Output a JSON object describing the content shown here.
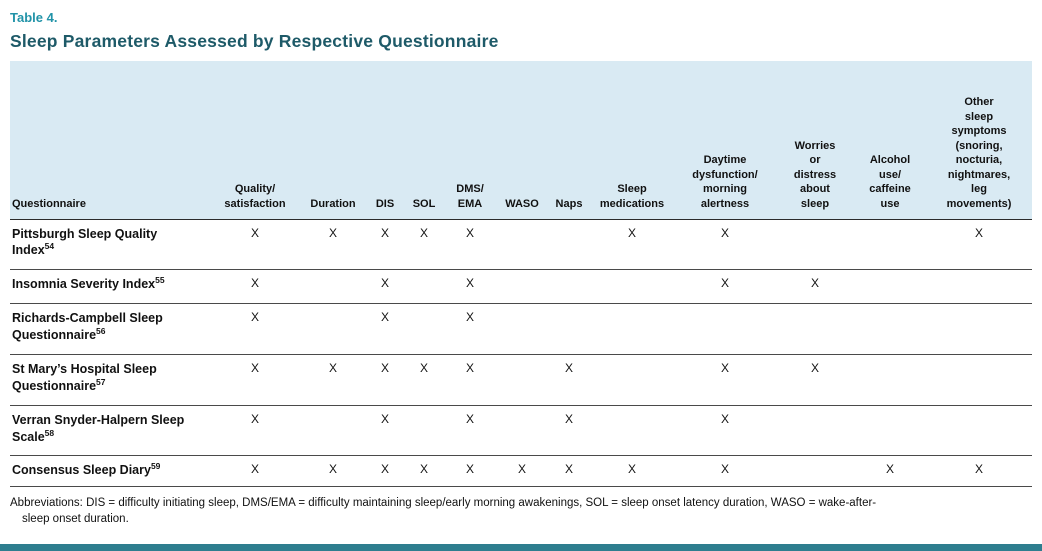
{
  "colors": {
    "accent_teal": "#2193A8",
    "title_teal": "#1E5A68",
    "header_bg": "#D9EAF3",
    "bottom_bar": "#2E7E8F",
    "rule_color": "#4a4a4a"
  },
  "table_label": "Table 4.",
  "title": "Sleep Parameters Assessed by Respective Questionnaire",
  "table": {
    "columns": [
      "Questionnaire",
      "Quality/\nsatisfaction",
      "Duration",
      "DIS",
      "SOL",
      "DMS/\nEMA",
      "WASO",
      "Naps",
      "Sleep\nmedications",
      "Daytime\ndysfunction/\nmorning\nalertness",
      "Worries\nor\ndistress\nabout\nsleep",
      "Alcohol\nuse/\ncaffeine\nuse",
      "Other\nsleep\nsymptoms\n(snoring,\nnocturia,\nnightmares,\nleg\nmovements)"
    ],
    "mark_symbol": "X",
    "rows": [
      {
        "name": "Pittsburgh Sleep Quality Index",
        "ref": "54",
        "marks": [
          "X",
          "X",
          "X",
          "X",
          "X",
          "",
          "",
          "X",
          "X",
          "",
          "",
          "X"
        ]
      },
      {
        "name": "Insomnia Severity Index",
        "ref": "55",
        "marks": [
          "X",
          "",
          "X",
          "",
          "X",
          "",
          "",
          "",
          "X",
          "X",
          "",
          ""
        ]
      },
      {
        "name": "Richards-Campbell Sleep Questionnaire",
        "ref": "56",
        "marks": [
          "X",
          "",
          "X",
          "",
          "X",
          "",
          "",
          "",
          "",
          "",
          "",
          ""
        ]
      },
      {
        "name": "St Mary’s Hospital Sleep Questionnaire",
        "ref": "57",
        "marks": [
          "X",
          "X",
          "X",
          "X",
          "X",
          "",
          "X",
          "",
          "X",
          "X",
          "",
          ""
        ]
      },
      {
        "name": "Verran Snyder-Halpern Sleep Scale",
        "ref": "58",
        "marks": [
          "X",
          "",
          "X",
          "",
          "X",
          "",
          "X",
          "",
          "X",
          "",
          "",
          ""
        ]
      },
      {
        "name": "Consensus Sleep Diary",
        "ref": "59",
        "marks": [
          "X",
          "X",
          "X",
          "X",
          "X",
          "X",
          "X",
          "X",
          "X",
          "",
          "X",
          "X"
        ]
      }
    ]
  },
  "footnote": "Abbreviations: DIS = difficulty initiating sleep, DMS/EMA = difficulty maintaining sleep/early morning awakenings, SOL = sleep onset latency duration, WASO = wake-after-\nsleep onset duration."
}
